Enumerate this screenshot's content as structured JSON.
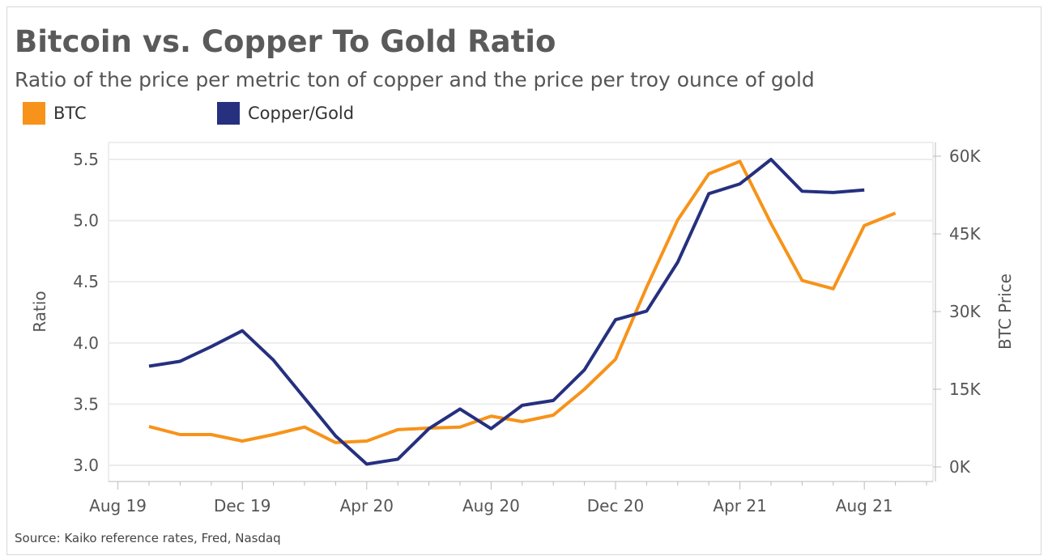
{
  "chart_data": {
    "type": "line",
    "title": "Bitcoin vs. Copper To Gold Ratio",
    "subtitle": "Ratio of the price per metric ton of copper and the price per troy ounce of gold",
    "ylabel": "Ratio",
    "y2label": "BTC Price",
    "source": "Source: Kaiko reference rates, Fred, Nasdaq",
    "x": [
      "Sep 19",
      "Oct 19",
      "Nov 19",
      "Dec 19",
      "Jan 20",
      "Feb 20",
      "Mar 20",
      "Apr 20",
      "May 20",
      "Jun 20",
      "Jul 20",
      "Aug 20",
      "Sep 20",
      "Oct 20",
      "Nov 20",
      "Dec 20",
      "Jan 21",
      "Feb 21",
      "Mar 21",
      "Apr 21",
      "May 21",
      "Jun 21",
      "Jul 21",
      "Aug 21",
      "Sep 21"
    ],
    "x_ticks": [
      "Aug 19",
      "Dec 19",
      "Apr 20",
      "Aug 20",
      "Dec 20",
      "Apr 21",
      "Aug 21"
    ],
    "ylim": [
      3.0,
      5.5
    ],
    "y_ticks": [
      "3.0",
      "3.5",
      "4.0",
      "4.5",
      "5.0",
      "5.5"
    ],
    "y2lim": [
      0,
      60000
    ],
    "y2_ticks": [
      "0K",
      "15K",
      "30K",
      "45K",
      "60K"
    ],
    "grid": true,
    "legend": "top-left",
    "series": [
      {
        "name": "BTC",
        "axis": "right",
        "color": "#f7931a",
        "values": [
          7800,
          6250,
          6250,
          5000,
          6250,
          7700,
          4700,
          5000,
          7200,
          7500,
          7700,
          9800,
          8750,
          10000,
          15000,
          20800,
          34700,
          47700,
          56600,
          59000,
          47000,
          36000,
          34400,
          46600,
          49000
        ]
      },
      {
        "name": "Copper/Gold",
        "axis": "left",
        "color": "#26307f",
        "values": [
          3.81,
          3.85,
          3.97,
          4.1,
          3.86,
          3.55,
          3.24,
          3.01,
          3.05,
          3.3,
          3.46,
          3.3,
          3.49,
          3.53,
          3.78,
          4.19,
          4.26,
          4.66,
          5.22,
          5.3,
          5.5,
          5.24,
          5.23,
          5.25,
          null
        ]
      }
    ]
  }
}
